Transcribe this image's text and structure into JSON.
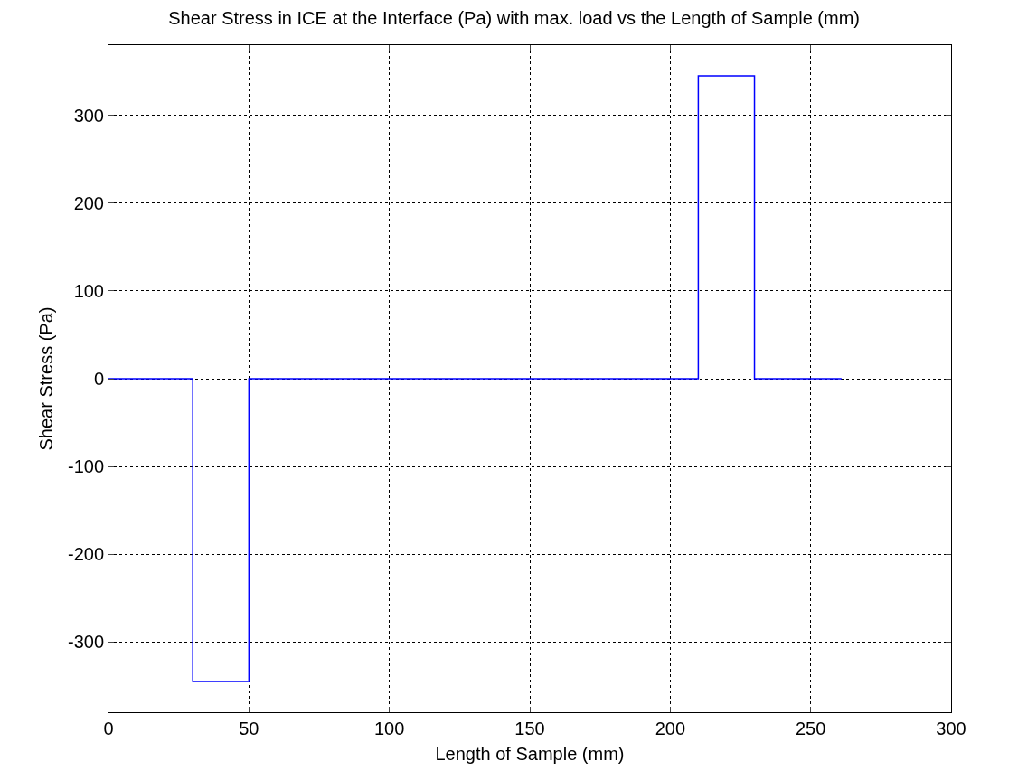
{
  "chart_data": {
    "type": "step",
    "title": "Shear Stress in ICE at the Interface (Pa) with max. load vs the Length of Sample (mm)",
    "xlabel": "Length of Sample (mm)",
    "ylabel": "Shear Stress (Pa)",
    "x": [
      0,
      30,
      50,
      210,
      230,
      261
    ],
    "series": [
      {
        "color": "#0000ff",
        "values": [
          0,
          -345,
          0,
          345,
          0,
          0
        ]
      }
    ],
    "xlim": [
      0,
      300
    ],
    "xticks": [
      0,
      50,
      100,
      150,
      200,
      250,
      300
    ],
    "ylim": [
      -380,
      380
    ],
    "yticks": [
      -300,
      -200,
      -100,
      0,
      100,
      200,
      300
    ],
    "grid": true,
    "line_style": "solid",
    "marker": "none",
    "legend": false
  }
}
